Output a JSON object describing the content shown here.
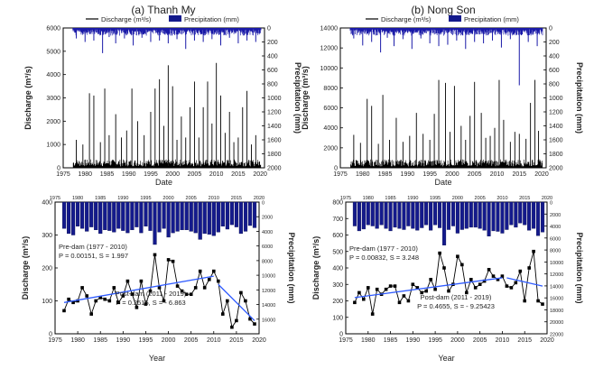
{
  "panels": [
    {
      "id": "a",
      "title": "(a) Thanh My",
      "left": 70,
      "right": 293
    },
    {
      "id": "b",
      "title": "(b) Nong Son",
      "left": 377,
      "right": 605
    }
  ],
  "legend": {
    "discharge": "Discharge (m³/s)",
    "precipitation": "Precipitation (mm)"
  },
  "chart_data": [
    {
      "type": "line",
      "panel": "a-top",
      "xlabel": "Date",
      "ylabel": "Discharge (m³/s)",
      "y2label": "Precipitation (mm)",
      "xlim": [
        1975,
        2021
      ],
      "ylim": [
        0,
        6000
      ],
      "y2lim": [
        0,
        2000
      ],
      "y2_inverted": true,
      "xticks": [
        1975,
        1980,
        1985,
        1990,
        1995,
        2000,
        2005,
        2010,
        2015,
        2020
      ],
      "yticks": [
        0,
        1000,
        2000,
        3000,
        4000,
        5000,
        6000
      ],
      "y2ticks": [
        0,
        200,
        400,
        600,
        800,
        1000,
        1200,
        1400,
        1600,
        1800,
        2000
      ],
      "peaks": {
        "x": [
          1978,
          1979.5,
          1981,
          1982,
          1983.5,
          1984.5,
          1985.5,
          1987,
          1988.3,
          1989.5,
          1990.7,
          1992,
          1993.5,
          1995,
          1996,
          1997,
          1998,
          1999,
          2000,
          2001,
          2002,
          2003,
          2004,
          2005,
          2006,
          2007,
          2008,
          2009,
          2010,
          2011,
          2012,
          2013,
          2014,
          2015,
          2016,
          2017,
          2018,
          2019
        ],
        "y": [
          1200,
          1000,
          3200,
          3100,
          1100,
          3400,
          1400,
          2300,
          1300,
          1600,
          3400,
          2000,
          1400,
          2400,
          3400,
          3800,
          1800,
          4400,
          3500,
          1200,
          2200,
          1300,
          2600,
          3700,
          1300,
          2600,
          3700,
          1900,
          4500,
          3100,
          1500,
          2400,
          1100,
          1300,
          2600,
          3300,
          1000,
          1400
        ]
      },
      "precip_peaks": {
        "x": [
          1978,
          1980,
          1982,
          1984,
          1985.5,
          1987,
          1989,
          1991,
          1993,
          1995,
          1997,
          1999,
          2001,
          2003,
          2005,
          2007,
          2009,
          2011,
          2013,
          2015,
          2017,
          2019
        ],
        "y": [
          150,
          200,
          180,
          360,
          130,
          220,
          150,
          250,
          140,
          200,
          180,
          220,
          160,
          300,
          180,
          200,
          160,
          250,
          140,
          220,
          180,
          200
        ]
      }
    },
    {
      "type": "line",
      "panel": "b-top",
      "xlabel": "Date",
      "ylabel": "Discharge (m³/s)",
      "y2label": "Precipitation (mm)",
      "xlim": [
        1975,
        2021
      ],
      "ylim": [
        0,
        14000
      ],
      "y2lim": [
        0,
        2000
      ],
      "y2_inverted": true,
      "xticks": [
        1975,
        1980,
        1985,
        1990,
        1995,
        2000,
        2005,
        2010,
        2015,
        2020
      ],
      "yticks": [
        0,
        2000,
        4000,
        6000,
        8000,
        10000,
        12000,
        14000
      ],
      "y2ticks": [
        0,
        200,
        400,
        600,
        800,
        1000,
        1200,
        1400,
        1600,
        1800,
        2000
      ],
      "peaks": {
        "x": [
          1978,
          1979.5,
          1981,
          1982,
          1983.5,
          1984.5,
          1986,
          1987.5,
          1989,
          1990.5,
          1992,
          1993.5,
          1995,
          1996,
          1997,
          1998.5,
          1999.5,
          2000.5,
          2002,
          2003,
          2004,
          2005,
          2006.5,
          2007.5,
          2008.5,
          2009.5,
          2010.5,
          2011.5,
          2013,
          2014,
          2015,
          2016.5,
          2017.5,
          2018.5,
          2019.3
        ],
        "y": [
          3300,
          2500,
          6900,
          6200,
          2400,
          7300,
          2800,
          5000,
          2600,
          3200,
          5500,
          3400,
          2800,
          5400,
          8800,
          8500,
          3600,
          8200,
          4200,
          2800,
          5200,
          8600,
          5500,
          3000,
          3200,
          4000,
          8800,
          4800,
          2600,
          3600,
          3400,
          2900,
          6500,
          8800,
          3700
        ]
      },
      "precip_peaks": {
        "x": [
          1978,
          1980,
          1982,
          1984,
          1985.5,
          1987,
          1989,
          1991,
          1993,
          1995,
          1997,
          1999,
          2001,
          2003,
          2005,
          2007,
          2009,
          2011,
          2013,
          2015,
          2017,
          2019
        ],
        "y": [
          150,
          250,
          200,
          350,
          140,
          260,
          160,
          300,
          150,
          220,
          260,
          240,
          180,
          300,
          200,
          220,
          180,
          280,
          160,
          820,
          200,
          260
        ]
      }
    },
    {
      "type": "line",
      "panel": "a-bottom",
      "xlabel": "Year",
      "ylabel": "Discharge (m³/s)",
      "y2label": "Precipitation (mm)",
      "xlim": [
        1975,
        2020
      ],
      "ylim": [
        0,
        400
      ],
      "y2lim": [
        0,
        18000
      ],
      "y2_inverted": true,
      "xticks": [
        1975,
        1980,
        1985,
        1990,
        1995,
        2000,
        2005,
        2010,
        2015,
        2020
      ],
      "yticks": [
        0,
        100,
        200,
        300,
        400
      ],
      "y2ticks": [
        0,
        2000,
        4000,
        6000,
        8000,
        10000,
        12000,
        14000,
        16000
      ],
      "x": [
        1977,
        1978,
        1979,
        1980,
        1981,
        1982,
        1983,
        1984,
        1985,
        1986,
        1987,
        1988,
        1989,
        1990,
        1991,
        1992,
        1993,
        1994,
        1995,
        1996,
        1997,
        1998,
        1999,
        2000,
        2001,
        2002,
        2003,
        2004,
        2005,
        2006,
        2007,
        2008,
        2009,
        2010,
        2011,
        2012,
        2013,
        2014,
        2015,
        2016,
        2017,
        2018,
        2019
      ],
      "discharge": [
        70,
        105,
        95,
        100,
        140,
        115,
        60,
        100,
        110,
        105,
        100,
        140,
        95,
        115,
        160,
        120,
        80,
        160,
        90,
        130,
        240,
        140,
        100,
        225,
        220,
        145,
        130,
        120,
        120,
        140,
        190,
        140,
        165,
        190,
        160,
        60,
        100,
        20,
        40,
        125,
        100,
        45,
        30
      ],
      "precipitation": [
        3600,
        4300,
        4500,
        3300,
        3600,
        4000,
        3400,
        3800,
        4300,
        3800,
        3900,
        4100,
        3600,
        3900,
        4200,
        3800,
        3400,
        4200,
        3300,
        3900,
        5800,
        4100,
        3600,
        4800,
        4200,
        4000,
        3800,
        3800,
        4000,
        4200,
        5100,
        4300,
        4400,
        4600,
        4100,
        3300,
        3700,
        3100,
        3400,
        4300,
        4000,
        3200,
        3500
      ],
      "pre_label": "Pre-dam (1977 - 2010)",
      "pre_stats": "P = 0.00151, S = 1.997",
      "post_label": "Post-dam (2011 - 2019)",
      "post_stats": "P = 0.2515, S = - 6.863",
      "pre_trend": {
        "x": [
          1977,
          2010
        ],
        "y": [
          95,
          175
        ]
      },
      "post_trend": {
        "x": [
          2011,
          2019
        ],
        "y": [
          150,
          40
        ]
      }
    },
    {
      "type": "line",
      "panel": "b-bottom",
      "xlabel": "Year",
      "ylabel": "Discharge (m³/s)",
      "y2label": "Precipitation (mm)",
      "xlim": [
        1975,
        2020
      ],
      "ylim": [
        0,
        800
      ],
      "y2lim": [
        0,
        22000
      ],
      "y2_inverted": true,
      "xticks": [
        1975,
        1980,
        1985,
        1990,
        1995,
        2000,
        2005,
        2010,
        2015,
        2020
      ],
      "yticks": [
        0,
        100,
        200,
        300,
        400,
        500,
        600,
        700,
        800
      ],
      "y2ticks": [
        0,
        2000,
        4000,
        6000,
        8000,
        10000,
        12000,
        14000,
        16000,
        18000,
        20000,
        22000
      ],
      "x": [
        1977,
        1978,
        1979,
        1980,
        1981,
        1982,
        1983,
        1984,
        1985,
        1986,
        1987,
        1988,
        1989,
        1990,
        1991,
        1992,
        1993,
        1994,
        1995,
        1996,
        1997,
        1998,
        1999,
        2000,
        2001,
        2002,
        2003,
        2004,
        2005,
        2006,
        2007,
        2008,
        2009,
        2010,
        2011,
        2012,
        2013,
        2014,
        2015,
        2016,
        2017,
        2018,
        2019
      ],
      "discharge": [
        190,
        250,
        210,
        280,
        120,
        270,
        240,
        270,
        290,
        290,
        190,
        230,
        200,
        300,
        280,
        250,
        260,
        330,
        270,
        490,
        400,
        260,
        300,
        470,
        420,
        250,
        330,
        280,
        300,
        320,
        390,
        350,
        330,
        350,
        290,
        280,
        310,
        380,
        200,
        400,
        500,
        200,
        180
      ],
      "precipitation": [
        4000,
        4800,
        4500,
        3800,
        4000,
        4400,
        3800,
        4400,
        4800,
        4200,
        4400,
        4600,
        4000,
        4400,
        4700,
        4300,
        3800,
        4700,
        3800,
        4300,
        7200,
        4600,
        4000,
        5200,
        4600,
        4400,
        4200,
        4200,
        4400,
        4700,
        5700,
        4800,
        4900,
        5200,
        4600,
        3800,
        4200,
        3500,
        3800,
        4700,
        4400,
        5600,
        5000
      ],
      "pre_label": "Pre-dam (1977 - 2010)",
      "pre_stats": "P = 0.00832, S = 3.248",
      "post_label": "Post-dam (2011 - 2019)",
      "post_stats": "P = 0.4655, S = - 9.25423",
      "pre_trend": {
        "x": [
          1977,
          2010
        ],
        "y": [
          220,
          340
        ]
      },
      "post_trend": {
        "x": [
          2011,
          2019
        ],
        "y": [
          340,
          290
        ]
      }
    }
  ]
}
